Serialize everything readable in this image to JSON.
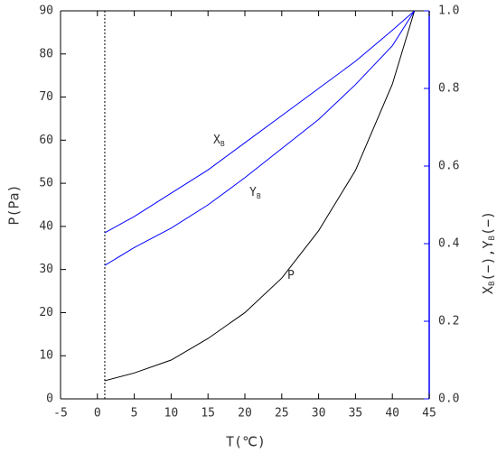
{
  "chart_data": {
    "type": "line",
    "xlabel": "T(℃)",
    "ylabel": "P(Pa)",
    "y2label": [
      {
        "text": "X",
        "sub": "B"
      },
      {
        "text": "(−),Y",
        "sub": "B"
      },
      {
        "text": "(−)"
      }
    ],
    "x": [
      1,
      5,
      10,
      15,
      20,
      25,
      30,
      35,
      40,
      43
    ],
    "series": [
      {
        "name": "P",
        "color": "#000000",
        "axis": "y",
        "values": [
          4.2,
          6,
          9,
          14,
          20,
          28,
          39,
          53,
          73,
          90
        ]
      },
      {
        "name": "X",
        "sub": "B",
        "color": "#0000ff",
        "axis": "y2",
        "values": [
          0.428,
          0.47,
          0.53,
          0.59,
          0.66,
          0.73,
          0.8,
          0.87,
          0.95,
          1.0
        ]
      },
      {
        "name": "Y",
        "sub": "B",
        "color": "#0000ff",
        "axis": "y2",
        "values": [
          0.344,
          0.39,
          0.44,
          0.5,
          0.57,
          0.645,
          0.72,
          0.81,
          0.91,
          1.0
        ]
      }
    ],
    "vline": 1,
    "xlim": [
      -5,
      45
    ],
    "xticks": [
      -5,
      0,
      5,
      10,
      15,
      20,
      25,
      30,
      35,
      40,
      45
    ],
    "ylim": [
      0,
      90
    ],
    "yticks": [
      0,
      10,
      20,
      30,
      40,
      50,
      60,
      70,
      80,
      90
    ],
    "y2lim": [
      0,
      1
    ],
    "y2ticks": [
      {
        "value": 0,
        "label": "0.0"
      },
      {
        "value": 0.2,
        "label": "0.2"
      },
      {
        "value": 0.4,
        "label": "0.4"
      },
      {
        "value": 0.6,
        "label": "0.6"
      },
      {
        "value": 0.8,
        "label": "0.8"
      },
      {
        "value": 1,
        "label": "1.0"
      }
    ],
    "y2color": "#0000ff"
  }
}
